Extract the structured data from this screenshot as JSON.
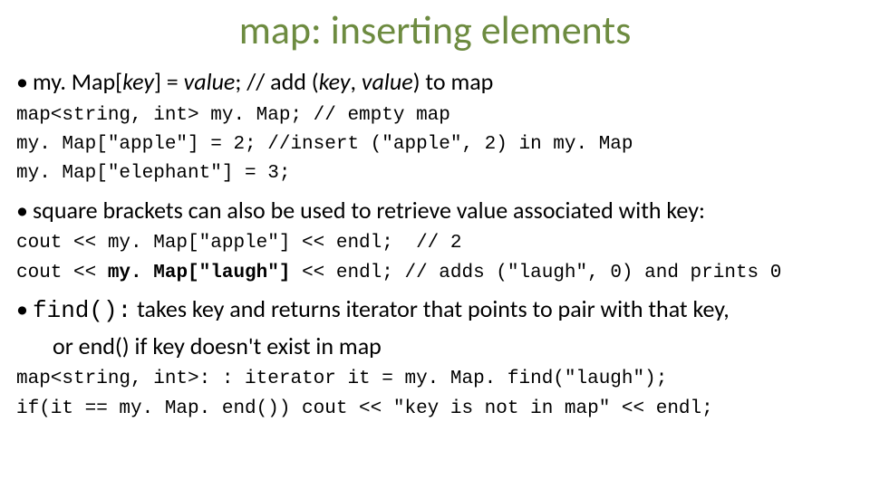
{
  "title": "map: inserting elements",
  "title_color": "#6d8b40",
  "bullet1_pre": "my. Map[",
  "bullet1_key": "key",
  "bullet1_mid1": "] = ",
  "bullet1_val": "value",
  "bullet1_mid2": "; // add (",
  "bullet1_key2": "key",
  "bullet1_sep": ", ",
  "bullet1_val2": "value",
  "bullet1_end": ") to map",
  "code1_l1": "map<string, int> my. Map; // empty map",
  "code1_l2": "my. Map[\"apple\"] = 2; //insert (\"apple\", 2) in my. Map",
  "code1_l3": "my. Map[\"elephant\"] = 3;",
  "bullet2": "square brackets can also be used to retrieve value associated with key:",
  "code2_l1": "cout << my. Map[\"apple\"] << endl;  // 2",
  "code2_l2a": "cout << ",
  "code2_l2b": "my. Map[\"laugh\"]",
  "code2_l2c": " << endl; // adds (\"laugh\", 0) and prints 0",
  "bullet3_code": "find():",
  "bullet3_text": "  takes key and returns iterator that points to pair with that key,",
  "bullet3_cont": "or end() if key doesn't exist in map",
  "code3_l1": "map<string, int>: : iterator it = my. Map. find(\"laugh\");",
  "code3_l2": "if(it == my. Map. end()) cout << \"key is not in map\" << endl;",
  "body_fontsize_bullet": 26,
  "body_fontsize_code": 21,
  "background_color": "#ffffff",
  "text_color": "#000000"
}
